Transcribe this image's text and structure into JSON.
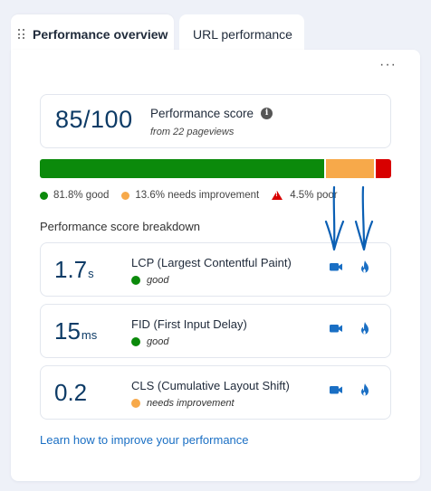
{
  "tabs": [
    {
      "label": "Performance overview",
      "active": true
    },
    {
      "label": "URL performance",
      "active": false
    }
  ],
  "menu": {
    "more_label": "···"
  },
  "summary": {
    "score": "85/100",
    "title": "Performance score",
    "info_icon": "i",
    "subtitle": "from 22 pageviews"
  },
  "distribution": {
    "good_fraction": 0.818,
    "needs_improvement_fraction": 0.136,
    "poor_fraction": 0.045,
    "good_label": "81.8% good",
    "ni_label": "13.6% needs improvement",
    "poor_label": "4.5% poor",
    "colors": {
      "good": "#0b8a0b",
      "needs_improvement": "#f7a94a",
      "poor": "#d80000"
    }
  },
  "breakdown": {
    "title": "Performance score breakdown",
    "metrics": [
      {
        "value": "1.7",
        "unit": "s",
        "name": "LCP (Largest Contentful Paint)",
        "status": "good",
        "status_color": "#0b8a0b"
      },
      {
        "value": "15",
        "unit": "ms",
        "name": "FID (First Input Delay)",
        "status": "good",
        "status_color": "#0b8a0b"
      },
      {
        "value": "0.2",
        "unit": "",
        "name": "CLS (Cumulative Layout Shift)",
        "status": "needs improvement",
        "status_color": "#f7a94a"
      }
    ],
    "icons": [
      "camera-icon",
      "flame-icon"
    ],
    "icon_color": "#1a6fc4"
  },
  "footer": {
    "learn_link": "Learn how to improve your performance"
  },
  "annotation": {
    "arrow_color": "#0a5fb4",
    "arrow_count": 2
  }
}
